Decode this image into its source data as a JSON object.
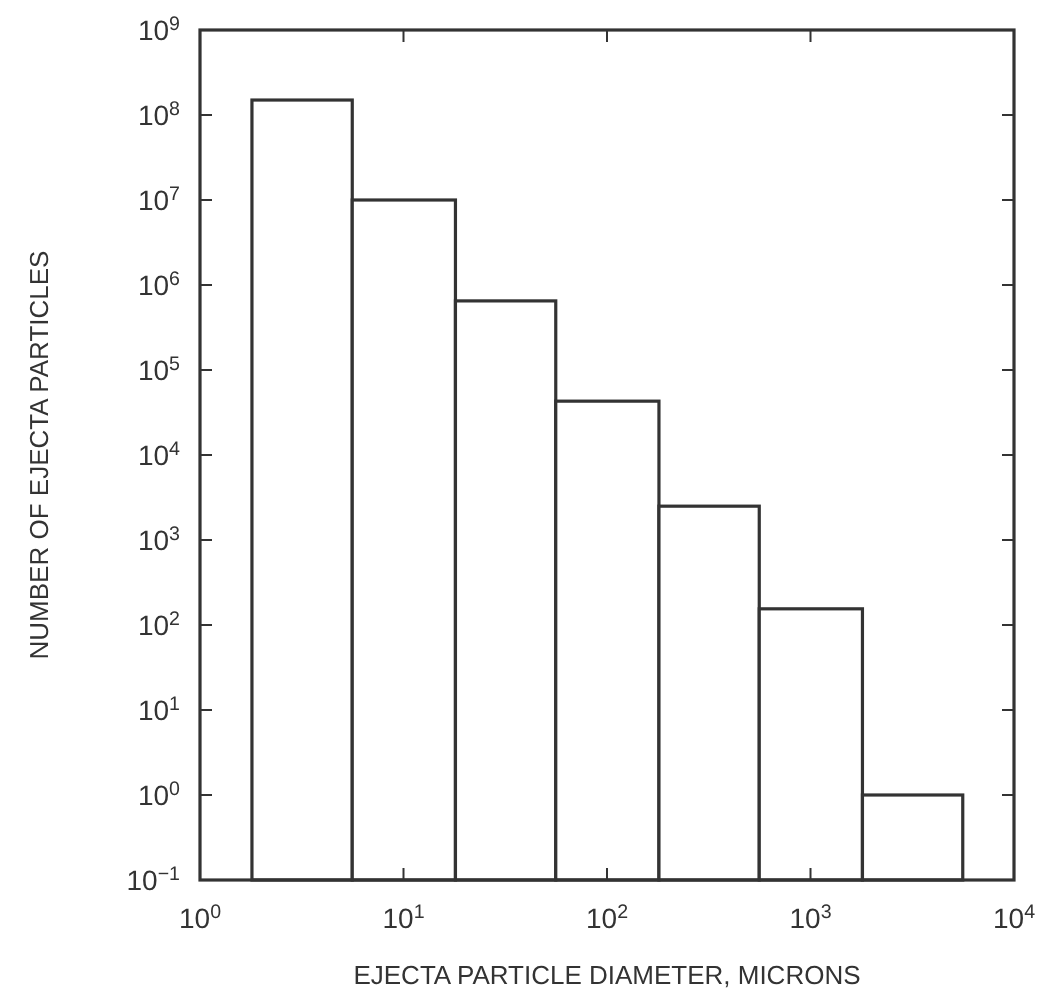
{
  "chart_data": {
    "type": "histogram",
    "xlabel": "EJECTA PARTICLE DIAMETER, MICRONS",
    "ylabel": "NUMBER OF EJECTA PARTICLES",
    "bins": [
      1.8,
      5.6,
      18,
      56,
      180,
      560,
      1800,
      5600
    ],
    "values": [
      150000000,
      10000000,
      650000,
      43000,
      2500,
      155,
      1
    ],
    "color": "#ffffff",
    "log": "xy",
    "grid": false,
    "xlim": [
      1,
      10000
    ],
    "ylim": [
      0.1,
      1000000000
    ],
    "xticks": [
      {
        "value": 1,
        "label": "10$^{0}$"
      },
      {
        "value": 10,
        "label": "10$^{1}$"
      },
      {
        "value": 100,
        "label": "10$^{2}$"
      },
      {
        "value": 1000,
        "label": "10$^{3}$"
      },
      {
        "value": 10000,
        "label": "10$^{4}$"
      }
    ],
    "yticks": [
      {
        "value": 0.1,
        "label": "10$^{−1}$"
      },
      {
        "value": 1,
        "label": "10$^{0}$"
      },
      {
        "value": 10,
        "label": "10$^{1}$"
      },
      {
        "value": 100,
        "label": "10$^{2}$"
      },
      {
        "value": 1000,
        "label": "10$^{3}$"
      },
      {
        "value": 10000,
        "label": "10$^{4}$"
      },
      {
        "value": 100000,
        "label": "10$^{5}$"
      },
      {
        "value": 1000000,
        "label": "10$^{6}$"
      },
      {
        "value": 10000000,
        "label": "10$^{7}$"
      },
      {
        "value": 100000000,
        "label": "10$^{8}$"
      },
      {
        "value": 1000000000,
        "label": "10$^{9}$"
      }
    ]
  }
}
